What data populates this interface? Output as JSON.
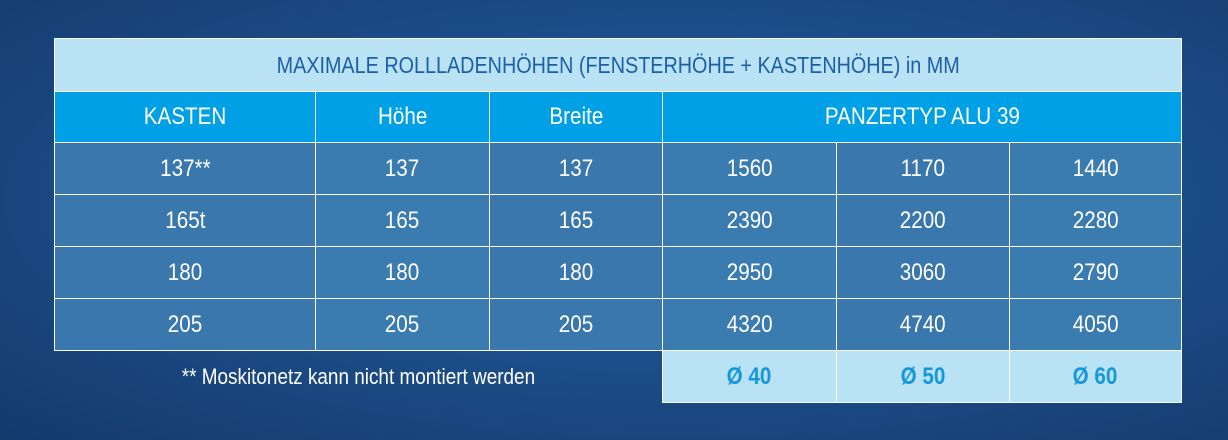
{
  "title": "MAXIMALE ROLLLADENHÖHEN (FENSTERHÖHE + KASTENHÖHE) in MM",
  "headers": {
    "kasten": "KASTEN",
    "hoehe": "Höhe",
    "breite": "Breite",
    "panzertyp": "PANZERTYP ALU 39"
  },
  "rows": [
    {
      "kasten": "137**",
      "hoehe": "137",
      "breite": "137",
      "v1": "1560",
      "v2": "1170",
      "v3": "1440"
    },
    {
      "kasten": "165t",
      "hoehe": "165",
      "breite": "165",
      "v1": "2390",
      "v2": "2200",
      "v3": "2280"
    },
    {
      "kasten": "180",
      "hoehe": "180",
      "breite": "180",
      "v1": "2950",
      "v2": "3060",
      "v3": "2790"
    },
    {
      "kasten": "205",
      "hoehe": "205",
      "breite": "205",
      "v1": "4320",
      "v2": "4740",
      "v3": "4050"
    }
  ],
  "footnote": "** Moskitonetz kann nicht montiert werden",
  "diameters": [
    "Ø 40",
    "Ø 50",
    "Ø 60"
  ],
  "colors": {
    "title_bg": "#b9e2f5",
    "header_bg": "#00a0e6",
    "cell_bg": "#3a7bb0",
    "accent_text": "#1597dc"
  }
}
